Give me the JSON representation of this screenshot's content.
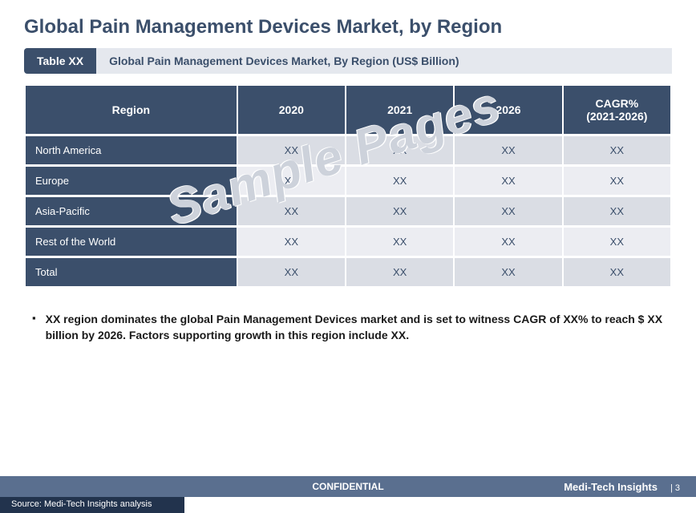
{
  "title": "Global Pain Management Devices Market, by Region",
  "table_tag": "Table XX",
  "table_caption": "Global Pain Management Devices Market, By Region (US$ Billion)",
  "table": {
    "type": "table",
    "columns": [
      "Region",
      "2020",
      "2021",
      "2026",
      "CAGR%\n(2021-2026)"
    ],
    "rows": [
      [
        "North America",
        "XX",
        "XX",
        "XX",
        "XX"
      ],
      [
        "Europe",
        "XX",
        "XX",
        "XX",
        "XX"
      ],
      [
        "Asia-Pacific",
        "XX",
        "XX",
        "XX",
        "XX"
      ],
      [
        "Rest of the World",
        "XX",
        "XX",
        "XX",
        "XX"
      ],
      [
        "Total",
        "XX",
        "XX",
        "XX",
        "XX"
      ]
    ],
    "header_bg": "#3b4f6b",
    "header_color": "#ffffff",
    "row_label_bg": "#3b4f6b",
    "row_label_color": "#ffffff",
    "row_odd_bg": "#dadde4",
    "row_even_bg": "#ecedf2",
    "cell_color": "#3b4f6b",
    "header_fontsize": 14,
    "cell_fontsize": 13
  },
  "bullet": "XX region dominates the global Pain Management Devices market and is set to witness CAGR of XX% to reach $ XX billion by 2026. Factors supporting growth in this region include XX.",
  "watermark": "Sample Pages",
  "footer": {
    "confidential": "CONFIDENTIAL",
    "brand": "Medi-Tech Insights",
    "page_num": "| 3",
    "source": "Source: Medi-Tech Insights analysis"
  },
  "colors": {
    "brand_dark": "#3b4f6b",
    "brand_mid": "#5a6f8f",
    "brand_deep": "#22334d",
    "caption_bg": "#e5e8ee"
  }
}
